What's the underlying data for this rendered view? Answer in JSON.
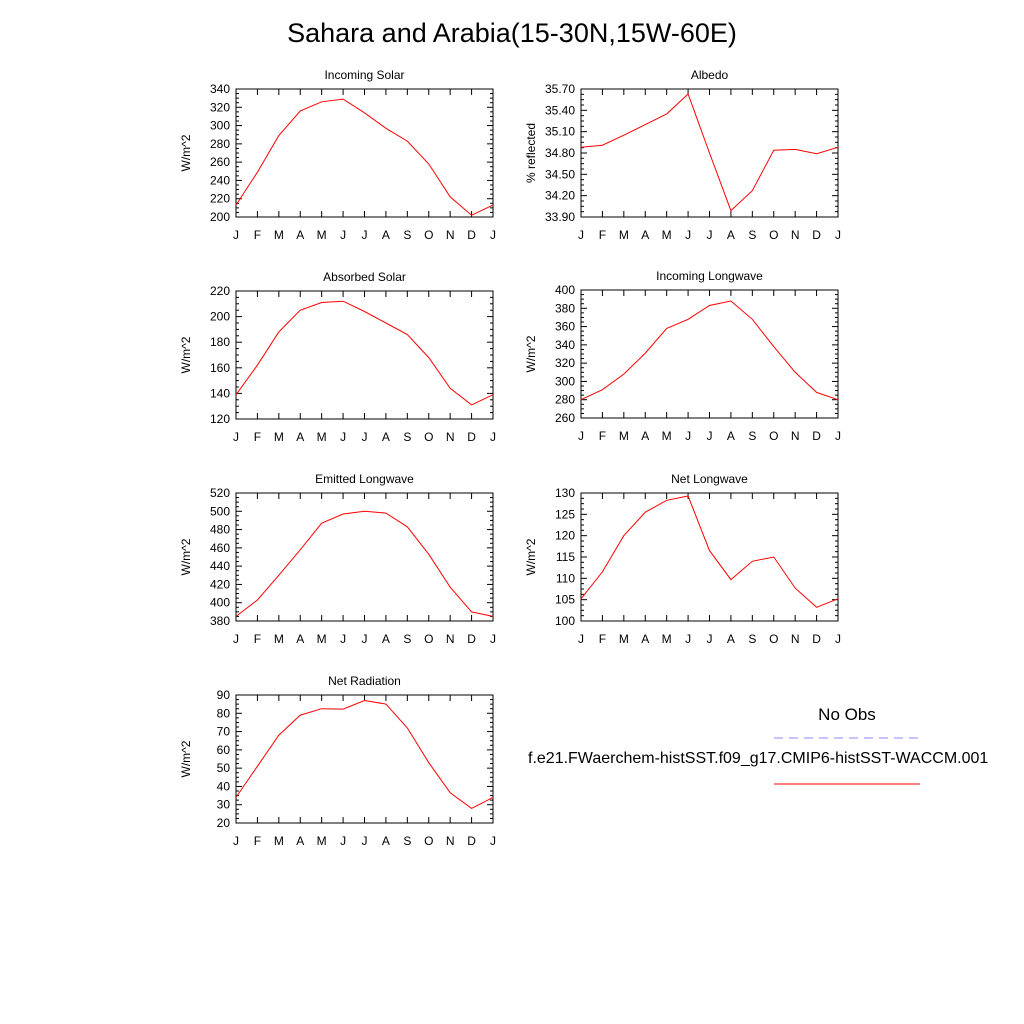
{
  "title": "Sahara and Arabia(15-30N,15W-60E)",
  "legend": {
    "obs_label": "No Obs",
    "obs_color": "#8888ff",
    "model_label": "f.e21.FWaerchem-histSST.f09_g17.CMIP6-histSST-WACCM.001",
    "model_color": "#ff0000"
  },
  "months": [
    "J",
    "F",
    "M",
    "A",
    "M",
    "J",
    "J",
    "A",
    "S",
    "O",
    "N",
    "D",
    "J"
  ],
  "chart_data": [
    {
      "type": "line",
      "title": "Incoming Solar",
      "ylabel": "W/m^2",
      "ylim": [
        200,
        340
      ],
      "yticks": [
        "200",
        "220",
        "240",
        "260",
        "280",
        "300",
        "320",
        "340"
      ],
      "x": [
        "J",
        "F",
        "M",
        "A",
        "M",
        "J",
        "J",
        "A",
        "S",
        "O",
        "N",
        "D",
        "J"
      ],
      "series": [
        {
          "values": [
            213,
            249,
            289,
            316,
            326,
            329,
            314,
            297,
            283,
            258,
            222,
            202,
            213
          ]
        }
      ]
    },
    {
      "type": "line",
      "title": "Albedo",
      "ylabel": "% reflected",
      "ylim": [
        33.9,
        35.7
      ],
      "yticks": [
        "33.90",
        "34.20",
        "34.50",
        "34.80",
        "35.10",
        "35.40",
        "35.70"
      ],
      "x": [
        "J",
        "F",
        "M",
        "A",
        "M",
        "J",
        "J",
        "A",
        "S",
        "O",
        "N",
        "D",
        "J"
      ],
      "series": [
        {
          "values": [
            34.88,
            34.91,
            35.05,
            35.2,
            35.35,
            35.63,
            34.8,
            33.99,
            34.27,
            34.84,
            34.85,
            34.79,
            34.88
          ]
        }
      ]
    },
    {
      "type": "line",
      "title": "Absorbed Solar",
      "ylabel": "W/m^2",
      "ylim": [
        120,
        220
      ],
      "yticks": [
        "120",
        "140",
        "160",
        "180",
        "200",
        "220"
      ],
      "x": [
        "J",
        "F",
        "M",
        "A",
        "M",
        "J",
        "J",
        "A",
        "S",
        "O",
        "N",
        "D",
        "J"
      ],
      "series": [
        {
          "values": [
            139,
            162,
            188,
            205,
            211,
            212,
            204,
            195,
            186,
            168,
            144,
            131,
            139
          ]
        }
      ]
    },
    {
      "type": "line",
      "title": "Incoming Longwave",
      "ylabel": "W/m^2",
      "ylim": [
        260,
        400
      ],
      "yticks": [
        "260",
        "280",
        "300",
        "320",
        "340",
        "360",
        "380",
        "400"
      ],
      "x": [
        "J",
        "F",
        "M",
        "A",
        "M",
        "J",
        "J",
        "A",
        "S",
        "O",
        "N",
        "D",
        "J"
      ],
      "series": [
        {
          "values": [
            280,
            291,
            308,
            331,
            358,
            368,
            383,
            388,
            368,
            338,
            310,
            288,
            280
          ]
        }
      ]
    },
    {
      "type": "line",
      "title": "Emitted Longwave",
      "ylabel": "W/m^2",
      "ylim": [
        380,
        520
      ],
      "yticks": [
        "380",
        "400",
        "420",
        "440",
        "460",
        "480",
        "500",
        "520"
      ],
      "x": [
        "J",
        "F",
        "M",
        "A",
        "M",
        "J",
        "J",
        "A",
        "S",
        "O",
        "N",
        "D",
        "J"
      ],
      "series": [
        {
          "values": [
            385,
            403,
            430,
            458,
            487,
            497,
            500,
            498,
            483,
            453,
            417,
            390,
            385
          ]
        }
      ]
    },
    {
      "type": "line",
      "title": "Net Longwave",
      "ylabel": "W/m^2",
      "ylim": [
        100,
        130
      ],
      "yticks": [
        "100",
        "105",
        "110",
        "115",
        "120",
        "125",
        "130"
      ],
      "x": [
        "J",
        "F",
        "M",
        "A",
        "M",
        "J",
        "J",
        "A",
        "S",
        "O",
        "N",
        "D",
        "J"
      ],
      "series": [
        {
          "values": [
            105.2,
            111.5,
            120,
            125.5,
            128.3,
            129.3,
            116.5,
            109.7,
            114,
            115,
            107.7,
            103.2,
            105.2
          ]
        }
      ]
    },
    {
      "type": "line",
      "title": "Net Radiation",
      "ylabel": "W/m^2",
      "ylim": [
        20,
        90
      ],
      "yticks": [
        "20",
        "30",
        "40",
        "50",
        "60",
        "70",
        "80",
        "90"
      ],
      "x": [
        "J",
        "F",
        "M",
        "A",
        "M",
        "J",
        "J",
        "A",
        "S",
        "O",
        "N",
        "D",
        "J"
      ],
      "series": [
        {
          "values": [
            34,
            51,
            68,
            79,
            82.5,
            82.3,
            87,
            85,
            72,
            53,
            36.5,
            28,
            34
          ]
        }
      ]
    }
  ]
}
